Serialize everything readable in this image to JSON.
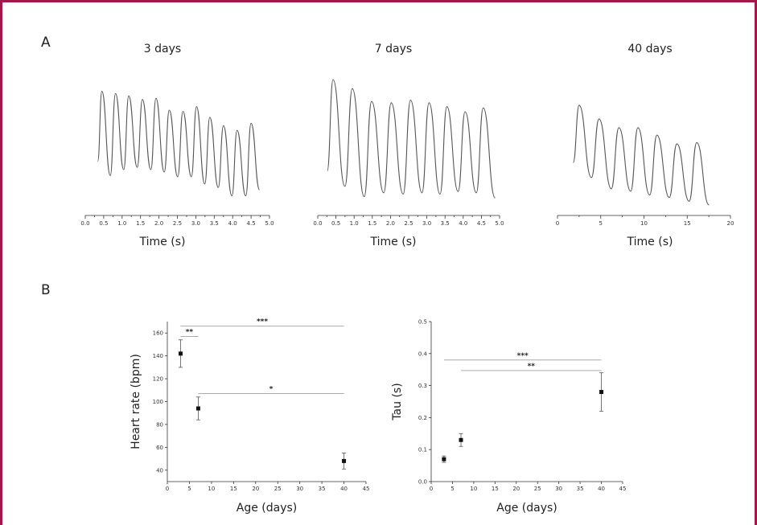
{
  "panel_a_label": "A",
  "panel_b_label": "B",
  "colors": {
    "frame": "#a3174a",
    "trace": "#555555",
    "marker": "#111111",
    "sig_line": "#aaaaaa"
  },
  "chart_data": [
    {
      "type": "line",
      "title": "3 days",
      "xlabel": "Time (s)",
      "xlim": [
        0.0,
        5.0
      ],
      "xticks": [
        "0.0",
        "0.5",
        "1.0",
        "1.5",
        "2.0",
        "2.5",
        "3.0",
        "3.5",
        "4.0",
        "4.5",
        "5.0"
      ],
      "y_axis_shown": false,
      "grid": false,
      "beat_times": [
        0.45,
        0.82,
        1.18,
        1.55,
        1.92,
        2.28,
        2.65,
        3.02,
        3.38,
        3.75,
        4.12,
        4.5
      ],
      "peak_levels": [
        0.93,
        0.91,
        0.89,
        0.86,
        0.87,
        0.77,
        0.76,
        0.8,
        0.71,
        0.64,
        0.6,
        0.66
      ],
      "trough_levels": [
        0.22,
        0.27,
        0.29,
        0.27,
        0.25,
        0.21,
        0.21,
        0.15,
        0.12,
        0.05,
        0.05,
        0.1
      ]
    },
    {
      "type": "line",
      "title": "7 days",
      "xlabel": "Time (s)",
      "xlim": [
        0.0,
        5.0
      ],
      "xticks": [
        "0.0",
        "0.5",
        "1.0",
        "1.5",
        "2.0",
        "2.5",
        "3.0",
        "3.5",
        "4.0",
        "4.5",
        "5.0"
      ],
      "y_axis_shown": false,
      "grid": false,
      "beat_times": [
        0.42,
        0.95,
        1.48,
        2.02,
        2.55,
        3.06,
        3.55,
        4.05,
        4.55
      ],
      "peak_levels": [
        0.95,
        0.88,
        0.78,
        0.77,
        0.79,
        0.77,
        0.74,
        0.7,
        0.73
      ],
      "trough_levels": [
        0.12,
        0.04,
        0.07,
        0.06,
        0.07,
        0.06,
        0.08,
        0.07,
        0.03
      ]
    },
    {
      "type": "line",
      "title": "40 days",
      "xlabel": "Time (s)",
      "xlim": [
        0,
        20
      ],
      "xticks": [
        "0",
        "5",
        "10",
        "15",
        "20"
      ],
      "y_axis_shown": false,
      "grid": false,
      "beat_times": [
        2.5,
        4.8,
        7.1,
        9.3,
        11.5,
        13.8,
        16.1
      ],
      "peak_levels": [
        0.82,
        0.71,
        0.64,
        0.64,
        0.58,
        0.51,
        0.52
      ],
      "trough_levels": [
        0.24,
        0.15,
        0.13,
        0.1,
        0.08,
        0.05,
        0.02
      ]
    },
    {
      "type": "scatter",
      "title": "",
      "xlabel": "Age (days)",
      "ylabel": "Heart rate (bpm)",
      "xlim": [
        0,
        45
      ],
      "ylim": [
        30,
        170
      ],
      "xticks": [
        "0",
        "5",
        "10",
        "15",
        "20",
        "25",
        "30",
        "35",
        "40",
        "45"
      ],
      "yticks": [
        "40",
        "60",
        "80",
        "100",
        "120",
        "140",
        "160"
      ],
      "grid": false,
      "points": [
        {
          "x": 3,
          "y": 142,
          "err": 12
        },
        {
          "x": 7,
          "y": 94,
          "err": 10
        },
        {
          "x": 40,
          "y": 48,
          "err": 7
        }
      ],
      "significance": [
        {
          "x_from": 3,
          "x_to": 7,
          "y": 157,
          "label": "**"
        },
        {
          "x_from": 3,
          "x_to": 40,
          "y": 166,
          "label": "***"
        },
        {
          "x_from": 7,
          "x_to": 40,
          "y": 107,
          "label": "*"
        }
      ]
    },
    {
      "type": "scatter",
      "title": "",
      "xlabel": "Age (days)",
      "ylabel": "Tau (s)",
      "xlim": [
        0,
        45
      ],
      "ylim": [
        0.0,
        0.5
      ],
      "xticks": [
        "0",
        "5",
        "10",
        "15",
        "20",
        "25",
        "30",
        "35",
        "40",
        "45"
      ],
      "yticks": [
        "0.0",
        "0.1",
        "0.2",
        "0.3",
        "0.4",
        "0.5"
      ],
      "grid": false,
      "points": [
        {
          "x": 3,
          "y": 0.07,
          "err": 0.01
        },
        {
          "x": 7,
          "y": 0.13,
          "err": 0.02
        },
        {
          "x": 40,
          "y": 0.28,
          "err": 0.06
        }
      ],
      "significance": [
        {
          "x_from": 3,
          "x_to": 40,
          "y": 0.38,
          "label": "***"
        },
        {
          "x_from": 7,
          "x_to": 40,
          "y": 0.347,
          "label": "**"
        }
      ]
    }
  ]
}
